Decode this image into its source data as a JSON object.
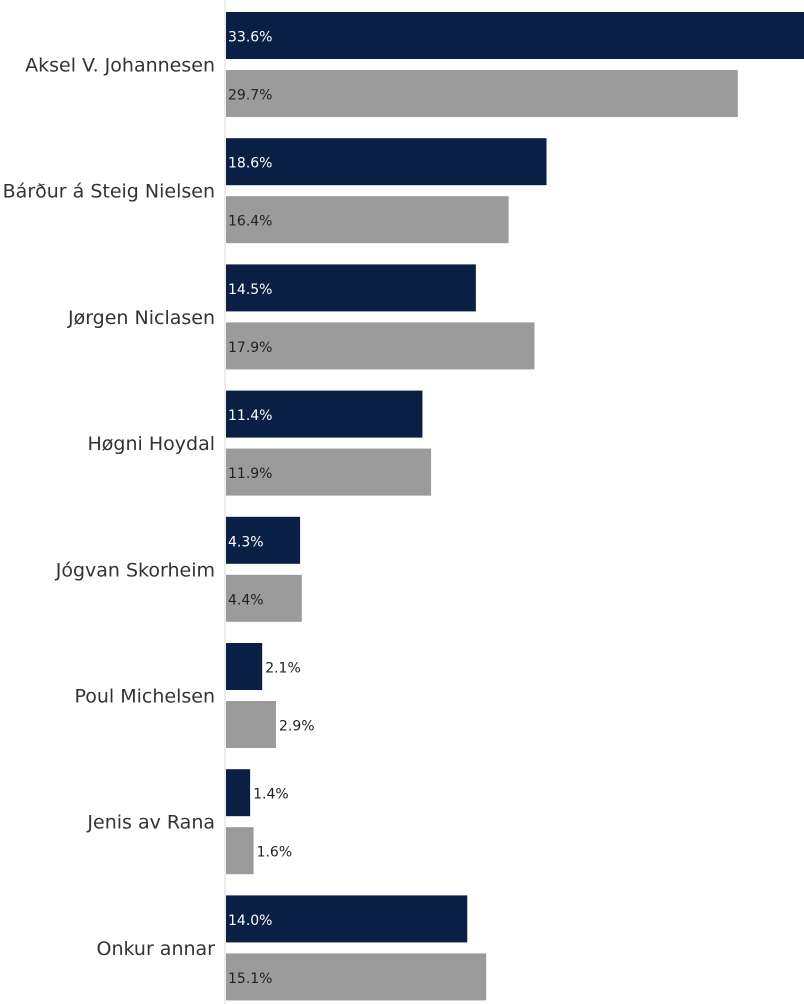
{
  "chart_data": {
    "type": "bar",
    "orientation": "horizontal",
    "categories": [
      "Aksel V. Johannesen",
      "Bárður á Steig Nielsen",
      "Jørgen Niclasen",
      "Høgni Hoydal",
      "Jógvan Skorheim",
      "Poul Michelsen",
      "Jenis av Rana",
      "Onkur annar"
    ],
    "series": [
      {
        "values": [
          33.6,
          18.6,
          14.5,
          11.4,
          4.3,
          2.1,
          1.4,
          14.0
        ],
        "labels": [
          "33.6%",
          "18.6%",
          "14.5%",
          "11.4%",
          "4.3%",
          "2.1%",
          "1.4%",
          "14.0%"
        ],
        "color": "#0a1f44"
      },
      {
        "values": [
          29.7,
          16.4,
          17.9,
          11.9,
          4.4,
          2.9,
          1.6,
          15.1
        ],
        "labels": [
          "29.7%",
          "16.4%",
          "17.9%",
          "11.9%",
          "4.4%",
          "2.9%",
          "1.6%",
          "15.1%"
        ],
        "color": "#9b9b9b"
      }
    ],
    "xlim": [
      0,
      33.6
    ],
    "grid": false,
    "legend": "none",
    "axis_color": "#d9d9d9"
  }
}
